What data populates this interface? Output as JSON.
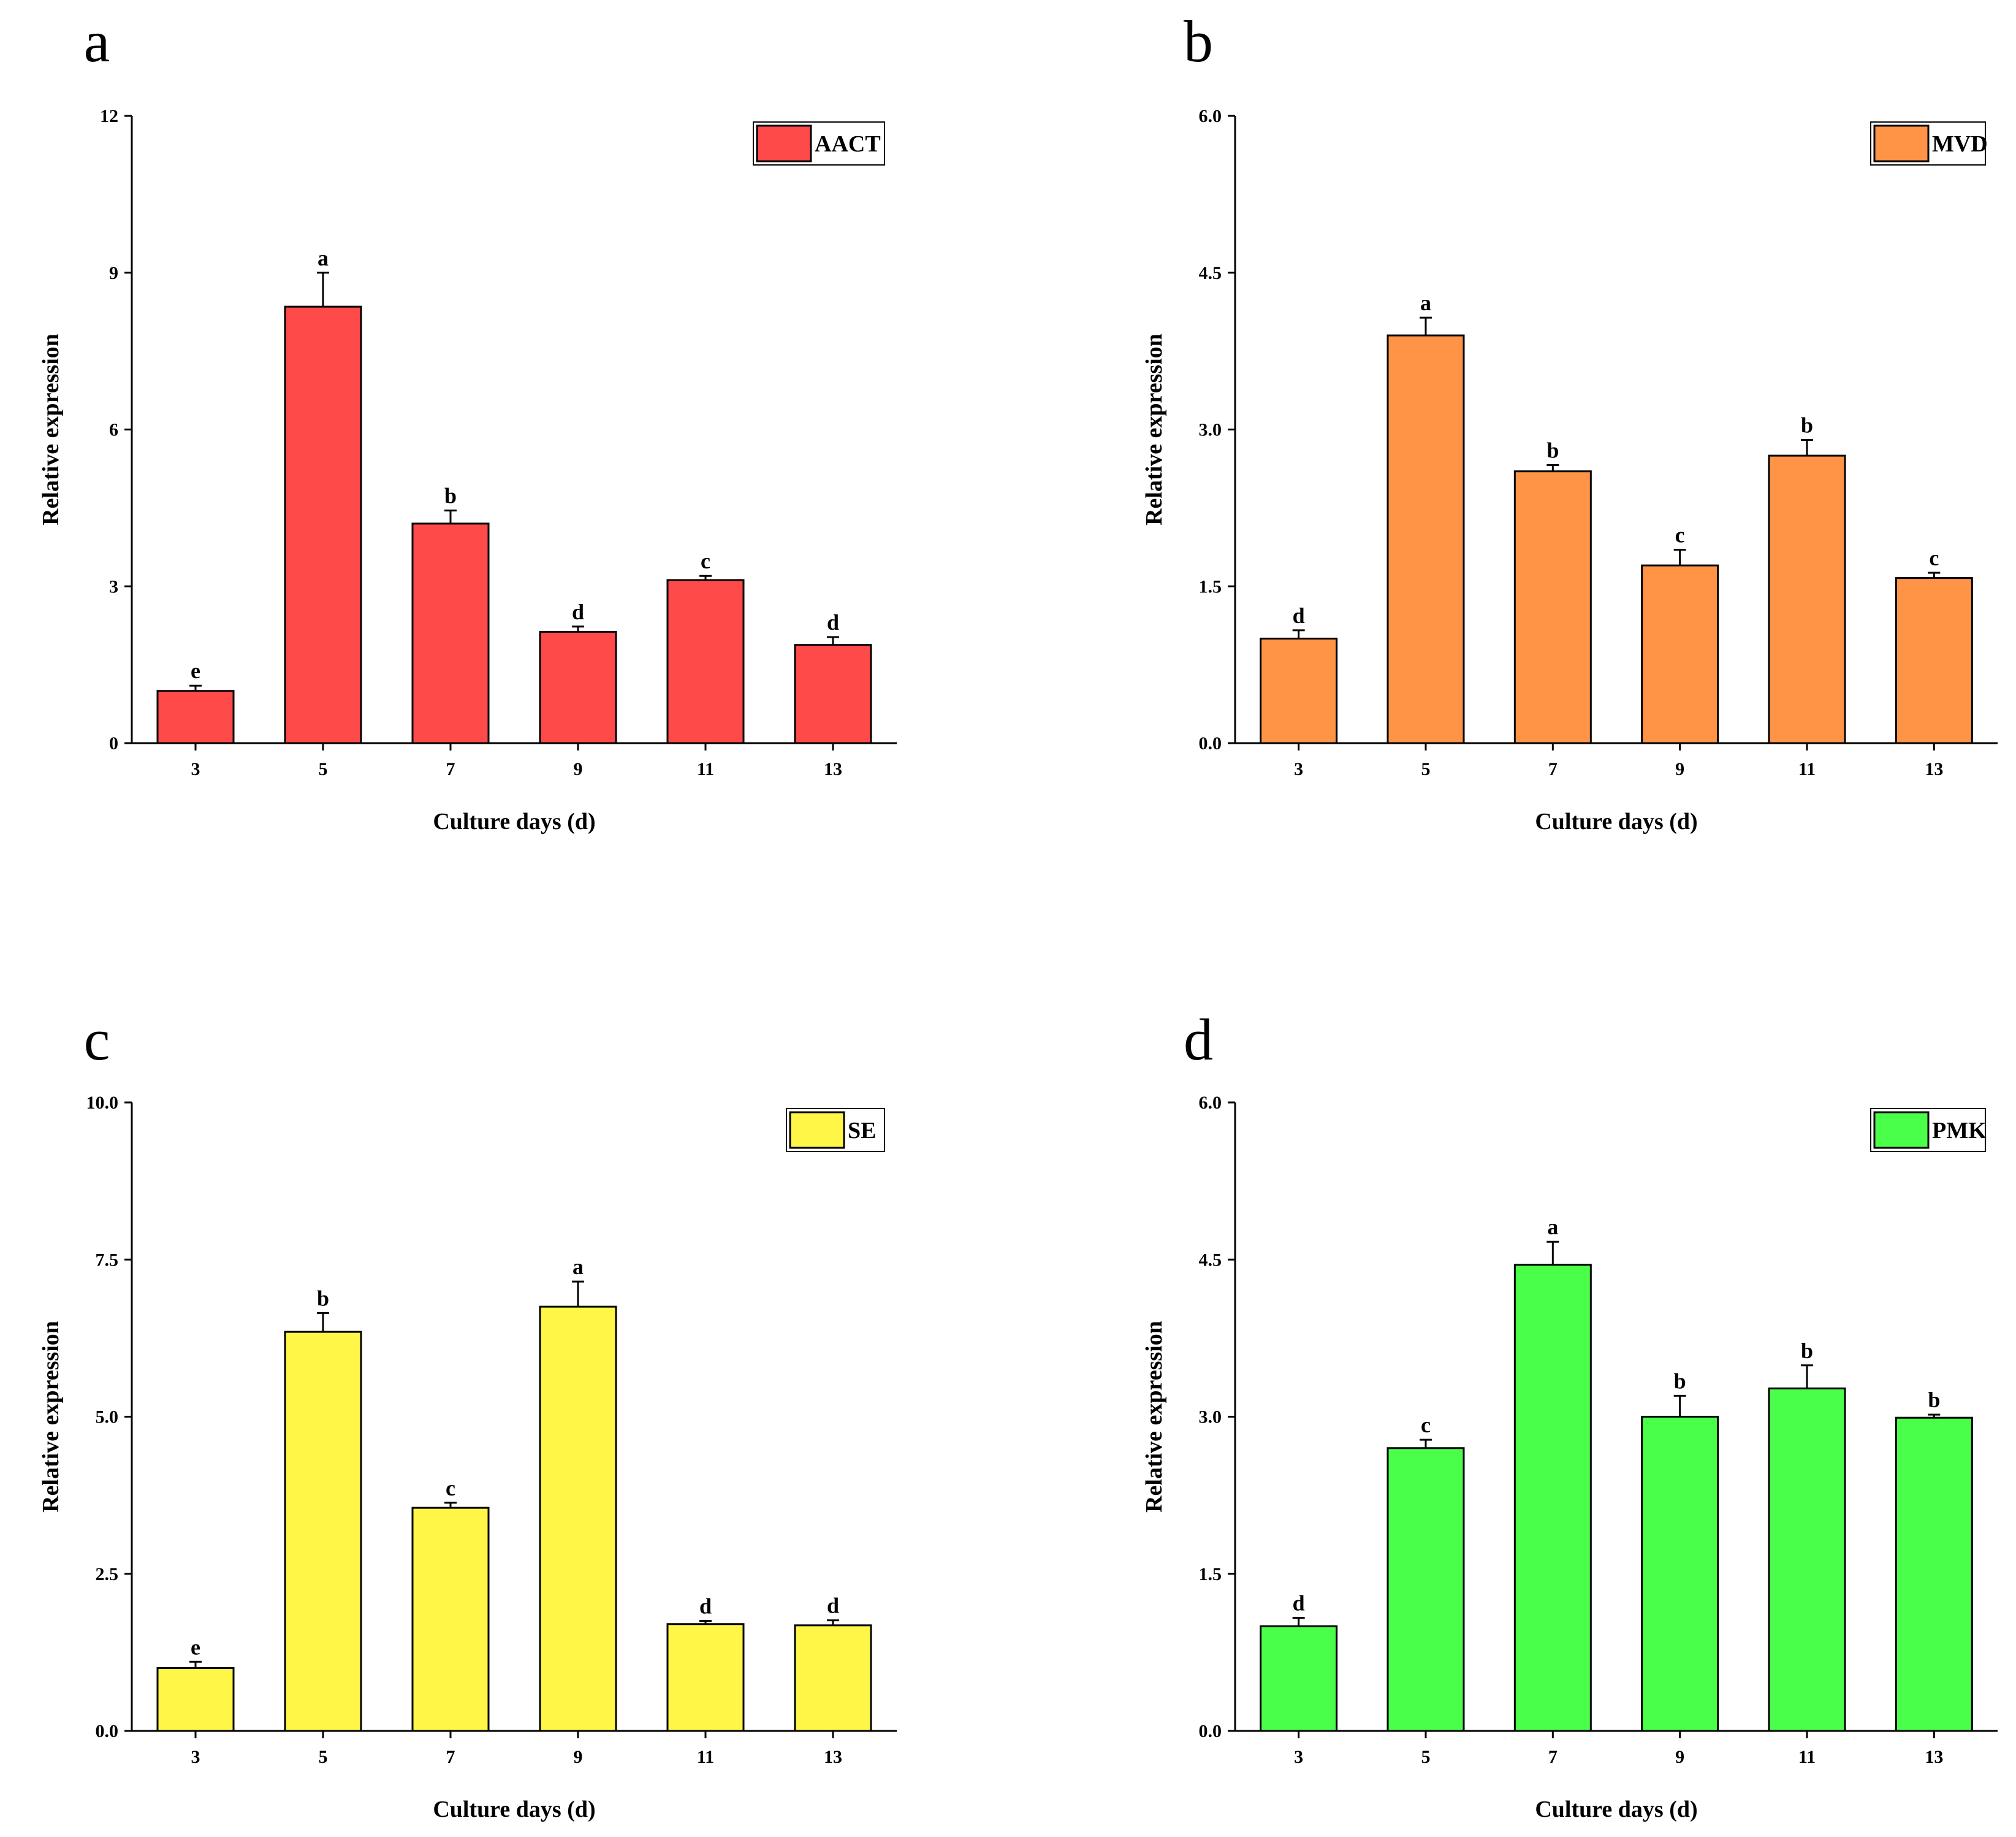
{
  "colors": {
    "axis": "#000000",
    "background": "#ffffff"
  },
  "chart_data": [
    {
      "panel_label": "a",
      "type": "bar",
      "categories": [
        "3",
        "5",
        "7",
        "9",
        "11",
        "13"
      ],
      "values": [
        1.0,
        8.35,
        4.2,
        2.13,
        3.12,
        1.88
      ],
      "errors": [
        0.1,
        0.65,
        0.25,
        0.1,
        0.08,
        0.15
      ],
      "significance": [
        "e",
        "a",
        "b",
        "d",
        "c",
        "d"
      ],
      "series_name": "AACT",
      "color": "#ff4a4a",
      "xlabel": "Culture days (d)",
      "ylabel": "Relative expression",
      "ylim": [
        0,
        12
      ],
      "yticks": [
        "0",
        "3",
        "6",
        "9",
        "12"
      ],
      "legend_position": "top-right"
    },
    {
      "panel_label": "b",
      "type": "bar",
      "categories": [
        "3",
        "5",
        "7",
        "9",
        "11",
        "13"
      ],
      "values": [
        1.0,
        3.9,
        2.6,
        1.7,
        2.75,
        1.58
      ],
      "errors": [
        0.08,
        0.17,
        0.06,
        0.15,
        0.15,
        0.05
      ],
      "significance": [
        "d",
        "a",
        "b",
        "c",
        "b",
        "c"
      ],
      "series_name": "MVD",
      "color": "#ff9447",
      "xlabel": "Culture days (d)",
      "ylabel": "Relative expression",
      "ylim": [
        0,
        6
      ],
      "yticks": [
        "0.0",
        "1.5",
        "3.0",
        "4.5",
        "6.0"
      ],
      "legend_position": "top-right"
    },
    {
      "panel_label": "c",
      "type": "bar",
      "categories": [
        "3",
        "5",
        "7",
        "9",
        "11",
        "13"
      ],
      "values": [
        1.0,
        6.35,
        3.55,
        6.75,
        1.7,
        1.68
      ],
      "errors": [
        0.1,
        0.3,
        0.08,
        0.4,
        0.05,
        0.08
      ],
      "significance": [
        "e",
        "b",
        "c",
        "a",
        "d",
        "d"
      ],
      "series_name": "SE",
      "color": "#fff647",
      "xlabel": "Culture days (d)",
      "ylabel": "Relative expression",
      "ylim": [
        0,
        10
      ],
      "yticks": [
        "0.0",
        "2.5",
        "5.0",
        "7.5",
        "10.0"
      ],
      "legend_position": "top-right"
    },
    {
      "panel_label": "d",
      "type": "bar",
      "categories": [
        "3",
        "5",
        "7",
        "9",
        "11",
        "13"
      ],
      "values": [
        1.0,
        2.7,
        4.45,
        3.0,
        3.27,
        2.99
      ],
      "errors": [
        0.08,
        0.08,
        0.22,
        0.2,
        0.22,
        0.03
      ],
      "significance": [
        "d",
        "c",
        "a",
        "b",
        "b",
        "b"
      ],
      "series_name": "PMK",
      "color": "#4aff4a",
      "xlabel": "Culture days (d)",
      "ylabel": "Relative expression",
      "ylim": [
        0,
        6
      ],
      "yticks": [
        "0.0",
        "1.5",
        "3.0",
        "4.5",
        "6.0"
      ],
      "legend_position": "top-right"
    }
  ]
}
